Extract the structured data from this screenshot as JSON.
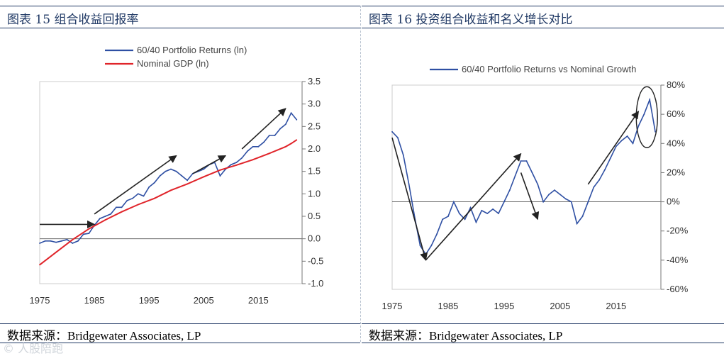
{
  "left": {
    "header": "图表 15 组合收益回报率",
    "footer": "数据来源：Bridgewater Associates, LP"
  },
  "right": {
    "header": "图表 16 投资组合收益和名义增长对比",
    "footer": "数据来源：Bridgewater Associates, LP"
  },
  "watermark": "© 人股陪跑",
  "colors": {
    "blue": "#2e4fa3",
    "red": "#e0242a",
    "frame": "#1f3864",
    "arrow": "#222222"
  },
  "chart_data": [
    {
      "type": "line",
      "legend": [
        "60/40 Portfolio Returns (ln)",
        "Nominal GDP (ln)"
      ],
      "x_ticks": [
        "1975",
        "1985",
        "1995",
        "2005",
        "2015"
      ],
      "y_ticks": [
        "3.5",
        "3.0",
        "2.5",
        "2.0",
        "1.5",
        "1.0",
        "0.5",
        "0.0",
        "-0.5",
        "-1.0"
      ],
      "xlim": [
        1975,
        2023
      ],
      "ylim": [
        -1.0,
        3.5
      ],
      "series": [
        {
          "name": "60/40 Portfolio Returns (ln)",
          "x": [
            1975,
            1976,
            1977,
            1978,
            1979,
            1980,
            1981,
            1982,
            1983,
            1984,
            1985,
            1986,
            1987,
            1988,
            1989,
            1990,
            1991,
            1992,
            1993,
            1994,
            1995,
            1996,
            1997,
            1998,
            1999,
            2000,
            2001,
            2002,
            2003,
            2004,
            2005,
            2006,
            2007,
            2008,
            2009,
            2010,
            2011,
            2012,
            2013,
            2014,
            2015,
            2016,
            2017,
            2018,
            2019,
            2020,
            2021,
            2022
          ],
          "values": [
            -0.1,
            -0.05,
            -0.05,
            -0.08,
            -0.05,
            -0.02,
            -0.1,
            -0.05,
            0.1,
            0.12,
            0.3,
            0.45,
            0.5,
            0.55,
            0.7,
            0.7,
            0.85,
            0.9,
            1.0,
            0.95,
            1.15,
            1.25,
            1.4,
            1.5,
            1.55,
            1.5,
            1.4,
            1.3,
            1.45,
            1.5,
            1.55,
            1.65,
            1.7,
            1.4,
            1.55,
            1.65,
            1.7,
            1.8,
            1.95,
            2.05,
            2.05,
            2.15,
            2.3,
            2.3,
            2.45,
            2.55,
            2.8,
            2.65
          ]
        },
        {
          "name": "Nominal GDP (ln)",
          "x": [
            1975,
            1978,
            1981,
            1984,
            1987,
            1990,
            1993,
            1996,
            1999,
            2002,
            2005,
            2008,
            2011,
            2014,
            2017,
            2020,
            2021,
            2022
          ],
          "values": [
            -0.58,
            -0.3,
            -0.02,
            0.22,
            0.42,
            0.6,
            0.76,
            0.9,
            1.08,
            1.22,
            1.38,
            1.53,
            1.64,
            1.76,
            1.9,
            2.05,
            2.12,
            2.2
          ]
        }
      ],
      "annotations": [
        {
          "type": "arrow",
          "from": [
            1975,
            0.32
          ],
          "to": [
            1985,
            0.32
          ]
        },
        {
          "type": "arrow",
          "from": [
            1985,
            0.55
          ],
          "to": [
            2000,
            1.85
          ]
        },
        {
          "type": "arrow",
          "from": [
            2003,
            1.45
          ],
          "to": [
            2009,
            1.85
          ]
        },
        {
          "type": "arrow",
          "from": [
            2012,
            2.0
          ],
          "to": [
            2020,
            2.9
          ]
        }
      ]
    },
    {
      "type": "line",
      "legend": [
        "60/40 Portfolio Returns vs Nominal Growth"
      ],
      "x_ticks": [
        "1975",
        "1985",
        "1995",
        "2005",
        "2015"
      ],
      "y_ticks": [
        "80%",
        "60%",
        "40%",
        "20%",
        "0%",
        "-20%",
        "-40%",
        "-60%"
      ],
      "xlim": [
        1975,
        2023
      ],
      "ylim": [
        -60,
        80
      ],
      "series": [
        {
          "name": "60/40 Portfolio Returns vs Nominal Growth",
          "x": [
            1975,
            1976,
            1977,
            1978,
            1979,
            1980,
            1981,
            1982,
            1983,
            1984,
            1985,
            1986,
            1987,
            1988,
            1989,
            1990,
            1991,
            1992,
            1993,
            1994,
            1995,
            1996,
            1997,
            1998,
            1999,
            2000,
            2001,
            2002,
            2003,
            2004,
            2005,
            2006,
            2007,
            2008,
            2009,
            2010,
            2011,
            2012,
            2013,
            2014,
            2015,
            2016,
            2017,
            2018,
            2019,
            2020,
            2021,
            2022
          ],
          "values": [
            48,
            44,
            32,
            12,
            -10,
            -30,
            -36,
            -30,
            -22,
            -12,
            -10,
            0,
            -8,
            -12,
            -4,
            -14,
            -6,
            -8,
            -5,
            -8,
            0,
            8,
            18,
            28,
            28,
            20,
            12,
            0,
            5,
            8,
            5,
            2,
            0,
            -15,
            -10,
            0,
            10,
            15,
            22,
            30,
            38,
            42,
            45,
            40,
            52,
            60,
            70,
            48
          ]
        }
      ],
      "annotations": [
        {
          "type": "arrow",
          "from": [
            1975,
            44
          ],
          "to": [
            1981,
            -40
          ]
        },
        {
          "type": "arrow",
          "from": [
            1981,
            -40
          ],
          "to": [
            1998,
            33
          ]
        },
        {
          "type": "arrow",
          "from": [
            1998,
            20
          ],
          "to": [
            2001,
            -12
          ]
        },
        {
          "type": "arrow",
          "from": [
            2010,
            12
          ],
          "to": [
            2019,
            62
          ]
        },
        {
          "type": "ellipse",
          "center": [
            2020.5,
            58
          ],
          "note": "peak highlight"
        }
      ]
    }
  ]
}
